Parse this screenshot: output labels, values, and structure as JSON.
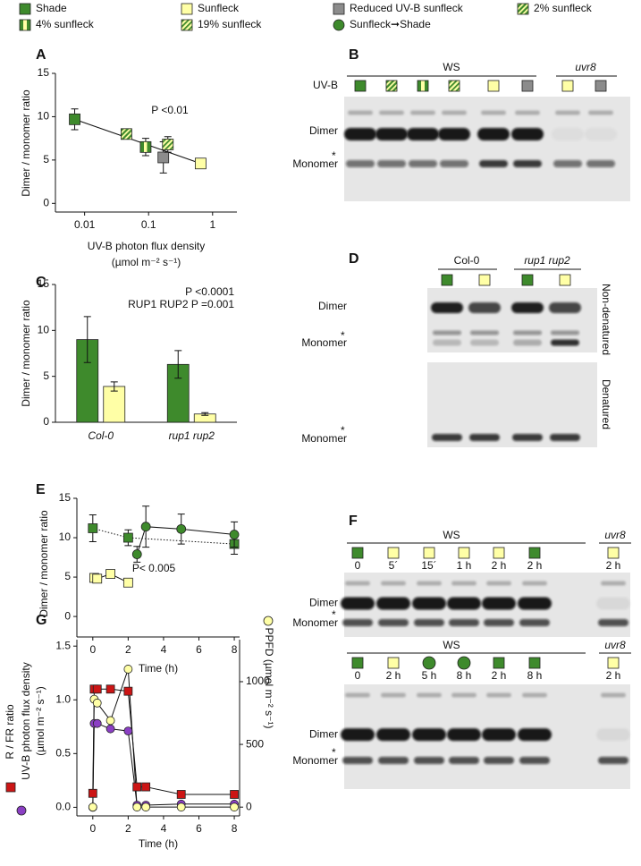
{
  "legend": [
    {
      "label": "Shade",
      "color": "#3e8a2c"
    },
    {
      "label": "Sunfleck",
      "color": "#ffffa6"
    },
    {
      "label": "Reduced UV-B sunfleck",
      "color": "#8c8c8c"
    },
    {
      "label": "2% sunfleck",
      "color": "#3e8a2c",
      "hatch_color": "#ffffa6"
    },
    {
      "label": "4% sunfleck",
      "color": "#3e8a2c",
      "stripe_color": "#ffffa6"
    },
    {
      "label": "19% sunfleck",
      "color": "#ffffa6",
      "hatch_color": "#3e8a2c"
    },
    {
      "label": "Sunfleck➞Shade",
      "color": "#3e8a2c",
      "shape": "circle"
    }
  ],
  "chart_data": [
    {
      "panel": "A",
      "type": "scatter",
      "xlog": true,
      "xlim": [
        0.0035,
        2.4
      ],
      "xticks": [
        0.01,
        0.1,
        1
      ],
      "ylim": [
        -1,
        15
      ],
      "yticks": [
        0,
        5,
        10,
        15
      ],
      "ylabel": "Dimer / monomer ratio",
      "xlabel": [
        "UV-B  photon flux density",
        "(µmol m⁻² s⁻¹)"
      ],
      "annotations": [
        "P <0.01"
      ],
      "series": [
        {
          "color": "#3e8a2c",
          "x": [
            0.007
          ],
          "values": [
            9.7
          ],
          "errors": [
            1.2
          ]
        },
        {
          "color": "#3e8a2c",
          "hatch_color": "#ffffa6",
          "x": [
            0.045
          ],
          "values": [
            8.0
          ],
          "errors": [
            0.4
          ]
        },
        {
          "color": "#3e8a2c",
          "stripe_color": "#ffffa6",
          "x": [
            0.09
          ],
          "values": [
            6.5
          ],
          "errors": [
            1.0
          ]
        },
        {
          "color": "#8c8c8c",
          "x": [
            0.17
          ],
          "values": [
            5.3
          ],
          "errors": [
            1.8
          ]
        },
        {
          "color": "#ffffa6",
          "hatch_color": "#3e8a2c",
          "x": [
            0.2
          ],
          "values": [
            6.8
          ],
          "errors": [
            0.9
          ]
        },
        {
          "color": "#ffffa6",
          "x": [
            0.65
          ],
          "values": [
            4.6
          ],
          "errors": [
            0.3
          ]
        }
      ],
      "fit": {
        "x": [
          0.007,
          0.65
        ],
        "values": [
          9.7,
          4.6
        ]
      }
    },
    {
      "panel": "C",
      "type": "bar",
      "categories": [
        "Col-0",
        "rup1 rup2"
      ],
      "ylim": [
        0,
        15
      ],
      "yticks": [
        0,
        5,
        10,
        15
      ],
      "ylabel": "Dimer / monomer ratio",
      "annotations": [
        "P <0.0001",
        "RUP1 RUP2 P =0.001"
      ],
      "series": [
        {
          "color": "#3e8a2c",
          "values": [
            9.0,
            6.3
          ],
          "errors": [
            2.5,
            1.5
          ]
        },
        {
          "color": "#ffffa6",
          "values": [
            3.9,
            0.9
          ],
          "errors": [
            0.5,
            0.15
          ]
        }
      ]
    },
    {
      "panel": "E",
      "type": "line",
      "xlim": [
        -0.9,
        8.3
      ],
      "xticks": [
        0,
        2,
        4,
        6,
        8
      ],
      "ylim": [
        -2.6,
        15
      ],
      "yticks": [
        0,
        5,
        10,
        15
      ],
      "ylabel": "Dimer / monomer ratio",
      "xlabel": "Time (h)",
      "annotations": [
        "P< 0.005"
      ],
      "series": [
        {
          "color": "#3e8a2c",
          "line": "dotted",
          "x": [
            0,
            2,
            8
          ],
          "values": [
            11.2,
            10.0,
            9.2
          ],
          "errors": [
            1.7,
            1.0,
            1.3
          ]
        },
        {
          "color": "#ffffa6",
          "x": [
            0.08,
            0.25,
            1,
            2
          ],
          "values": [
            4.9,
            4.8,
            5.4,
            4.3
          ],
          "errors": [
            0.4,
            0.3,
            0.3,
            0.4
          ]
        },
        {
          "color": "#3e8a2c",
          "shape": "circle",
          "x": [
            2.5,
            3,
            5,
            8
          ],
          "values": [
            7.9,
            11.4,
            11.1,
            10.4
          ],
          "errors": [
            1.0,
            2.6,
            1.9,
            1.6
          ]
        }
      ]
    },
    {
      "panel": "G",
      "type": "line",
      "xlim": [
        -0.9,
        8.3
      ],
      "xticks": [
        0,
        2,
        4,
        6,
        8
      ],
      "ylim": [
        -0.08,
        1.56
      ],
      "yticks": [
        {
          "value": 0,
          "label": "0.0"
        },
        0.5,
        {
          "value": 1,
          "label": "1.0"
        },
        1.5
      ],
      "y2lim": [
        -70,
        1335
      ],
      "y2ticks": [
        0,
        500,
        1000
      ],
      "ylabel": [
        "R / FR ratio",
        "UV-B photon flux density",
        "(µmol m⁻² s⁻¹)"
      ],
      "y2label": "PPFD (µmol m⁻² s⁻¹)",
      "xlabel": "Time (h)",
      "series": [
        {
          "color": "#cc1515",
          "x": [
            0,
            0.08,
            0.25,
            1,
            2,
            2.5,
            3,
            5,
            8
          ],
          "values": [
            0.13,
            1.1,
            1.1,
            1.1,
            1.08,
            0.19,
            0.19,
            0.12,
            0.12
          ]
        },
        {
          "color": "#8b3fc4",
          "shape": "circle",
          "x": [
            0,
            0.08,
            0.25,
            1,
            2,
            2.5,
            3,
            5,
            8
          ],
          "values": [
            0,
            0.78,
            0.78,
            0.73,
            0.71,
            0.02,
            0.02,
            0.03,
            0.03
          ]
        },
        {
          "color": "#ffffa6",
          "shape": "circle",
          "axis": "y2",
          "x": [
            0,
            0.08,
            0.25,
            1,
            2,
            2.5,
            3,
            5,
            8
          ],
          "values": [
            0,
            860,
            830,
            690,
            1100,
            0,
            0,
            0,
            0
          ]
        }
      ]
    }
  ],
  "blots": [
    {
      "panel": "B",
      "groups": [
        "WS",
        "uvr8"
      ],
      "row_label": "UV-B",
      "bands": [
        "Dimer",
        "Monomer"
      ],
      "asterisk": "*"
    },
    {
      "panel": "D",
      "groups": [
        "Col-0",
        "rup1 rup2"
      ],
      "bands": [
        "Dimer",
        "Monomer",
        "Monomer"
      ],
      "asterisk": "*",
      "conditions": [
        "Non-denatured",
        "Denatured"
      ]
    },
    {
      "panel": "F",
      "groups": [
        "WS",
        "uvr8"
      ],
      "lanes": [
        "0",
        "5´",
        "15´",
        "1 h",
        "2 h",
        "2 h",
        "2 h"
      ],
      "bands": [
        "Dimer",
        "Monomer"
      ],
      "asterisk": "*"
    },
    {
      "groups": [
        "WS",
        "uvr8"
      ],
      "lanes": [
        "0",
        "2 h",
        "5 h",
        "8 h",
        "2 h",
        "8 h",
        "2 h"
      ],
      "bands": [
        "Dimer",
        "Monomer"
      ],
      "asterisk": "*"
    }
  ]
}
